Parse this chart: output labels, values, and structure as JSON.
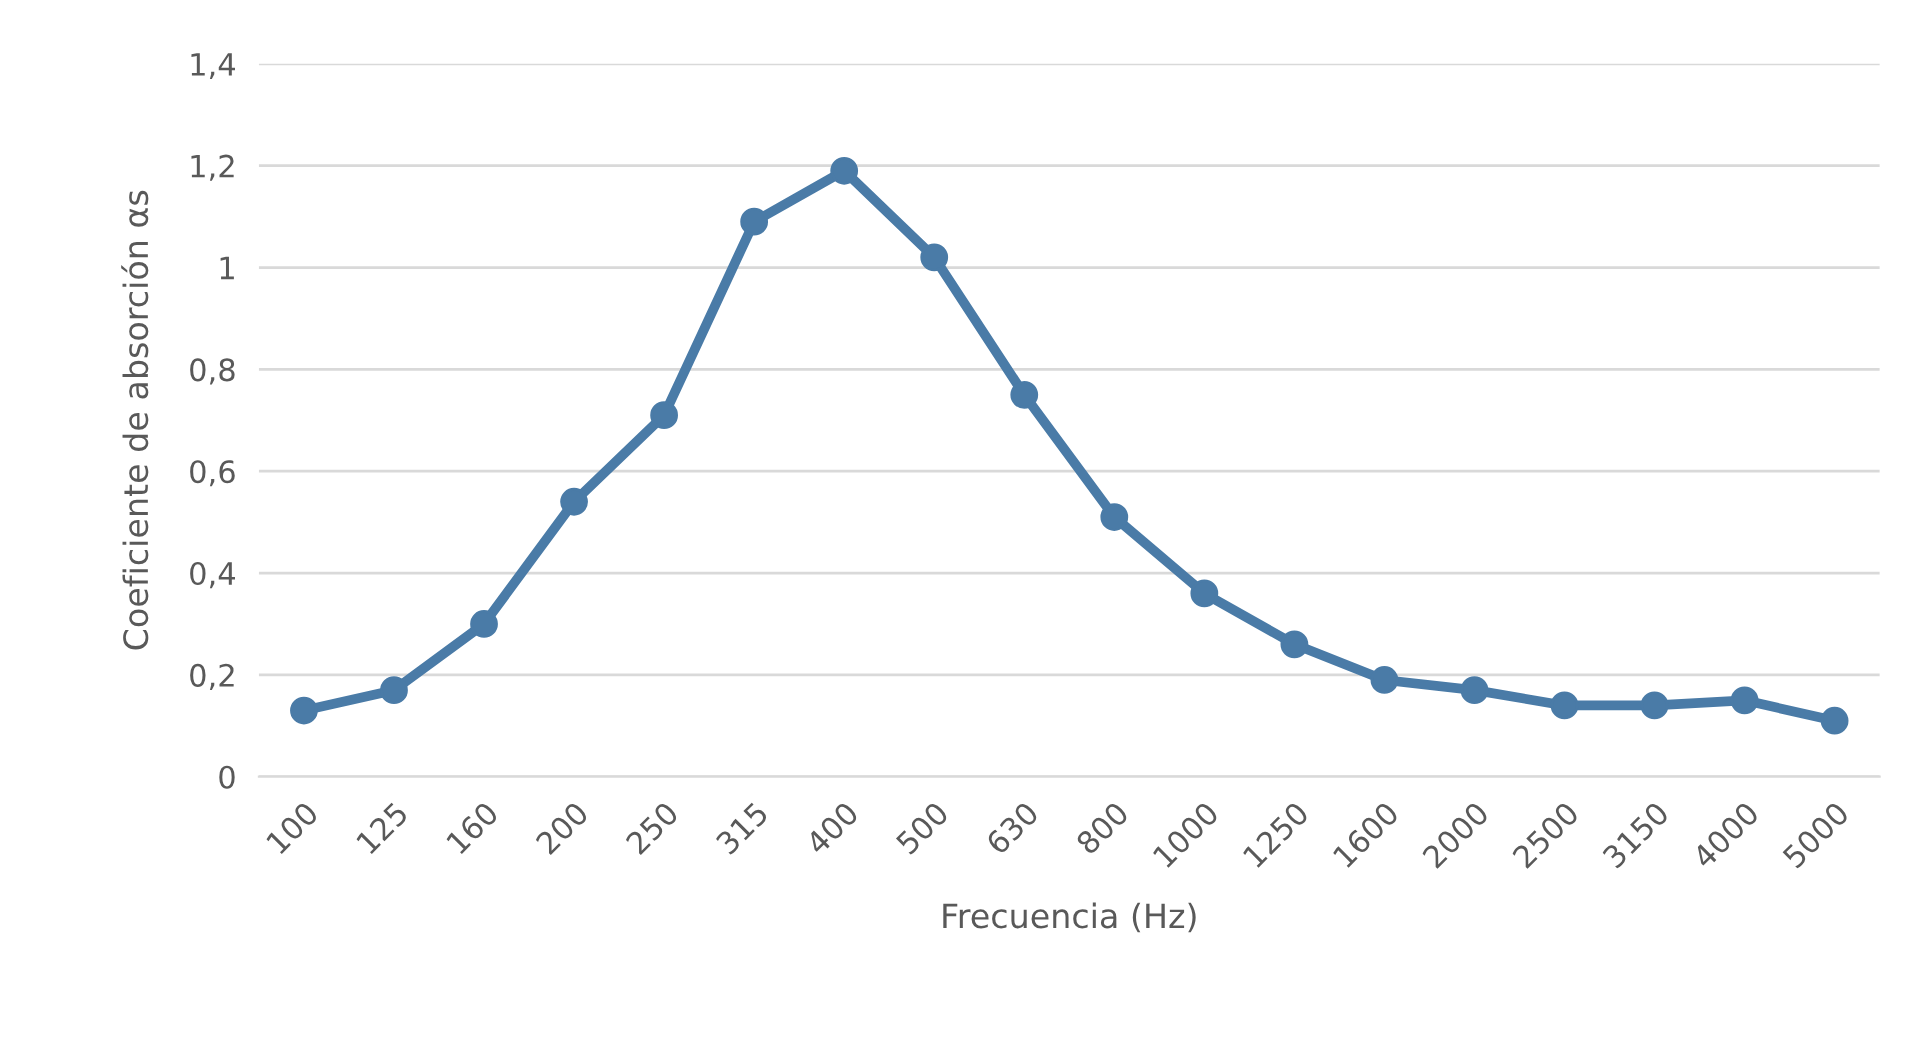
{
  "chart_data": {
    "type": "line",
    "xlabel": "Frecuencia (Hz)",
    "ylabel": "Coeficiente de absorción αs",
    "categories": [
      "100",
      "125",
      "160",
      "200",
      "250",
      "315",
      "400",
      "500",
      "630",
      "800",
      "1000",
      "1250",
      "1600",
      "2000",
      "2500",
      "3150",
      "4000",
      "5000"
    ],
    "series": [
      {
        "color": "#4a7ba7",
        "values": [
          0.13,
          0.17,
          0.3,
          0.54,
          0.71,
          1.09,
          1.19,
          1.02,
          0.75,
          0.51,
          0.36,
          0.26,
          0.19,
          0.17,
          0.14,
          0.14,
          0.15,
          0.11
        ]
      }
    ],
    "ylim": [
      0,
      1.4
    ],
    "yticks": [
      {
        "value": 0,
        "label": "0"
      },
      {
        "value": 0.2,
        "label": "0,2"
      },
      {
        "value": 0.4,
        "label": "0,4"
      },
      {
        "value": 0.6,
        "label": "0,6"
      },
      {
        "value": 0.8,
        "label": "0,8"
      },
      {
        "value": 1,
        "label": "1"
      },
      {
        "value": 1.2,
        "label": "1,2"
      },
      {
        "value": 1.4,
        "label": "1,4"
      }
    ],
    "grid": "y",
    "marker": "circle",
    "line_style": "solid",
    "legend": false
  }
}
